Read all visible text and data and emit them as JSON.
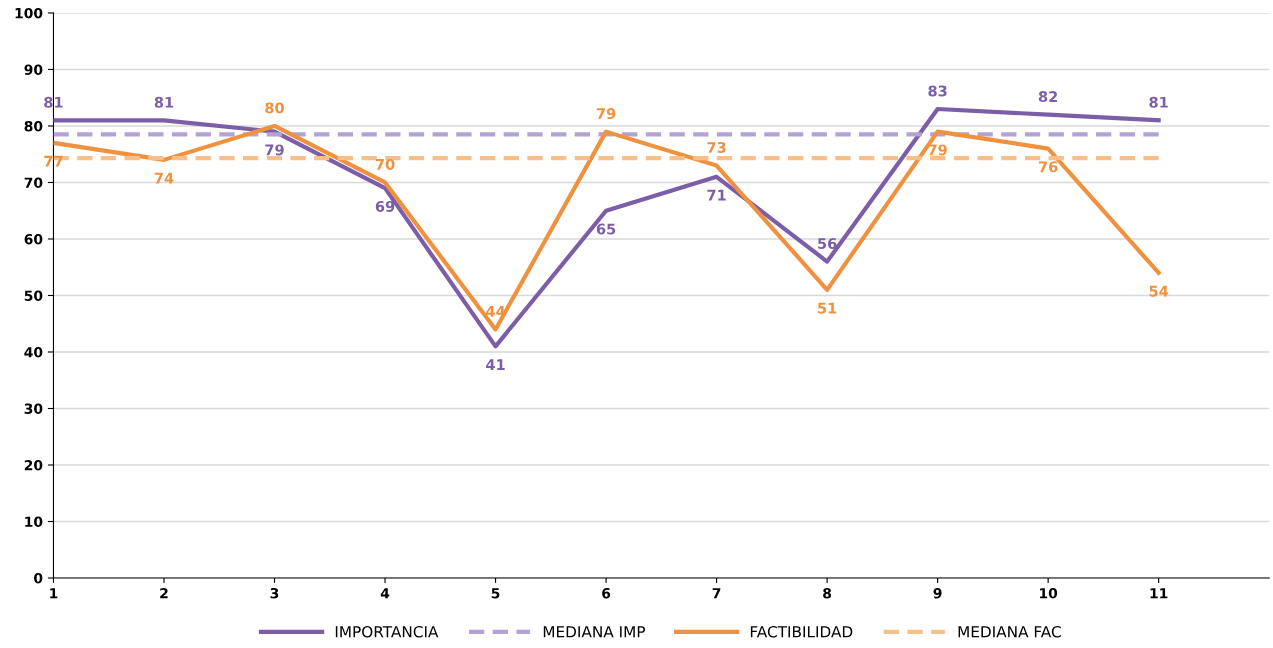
{
  "chart_data": {
    "type": "line",
    "categories": [
      "1",
      "2",
      "3",
      "4",
      "5",
      "6",
      "7",
      "8",
      "9",
      "10",
      "11"
    ],
    "series": [
      {
        "name": "IMPORTANCIA",
        "color": "#7b5ea7",
        "values": [
          81,
          81,
          79,
          69,
          41,
          65,
          71,
          56,
          83,
          82,
          81
        ],
        "value_labels": [
          "81",
          "81",
          "79",
          "69",
          "41",
          "65",
          "71",
          "56",
          "83",
          "82",
          "81"
        ]
      },
      {
        "name": "MEDIANA IMP",
        "color": "#b3a2d3",
        "line_style": "dashed",
        "values": [
          78.5,
          78.5,
          78.5,
          78.5,
          78.5,
          78.5,
          78.5,
          78.5,
          78.5,
          78.5,
          78.5
        ]
      },
      {
        "name": "FACTIBILIDAD",
        "color": "#f0913f",
        "values": [
          77,
          74,
          80,
          70,
          44,
          79,
          73,
          51,
          79,
          76,
          54
        ],
        "value_labels": [
          "77",
          "74",
          "80",
          "70",
          "44",
          "79",
          "73",
          "51",
          "79",
          "76",
          "54"
        ]
      },
      {
        "name": "MEDIANA FAC",
        "color": "#f7c08a",
        "line_style": "dashed",
        "values": [
          74.3,
          74.3,
          74.3,
          74.3,
          74.3,
          74.3,
          74.3,
          74.3,
          74.3,
          74.3,
          74.3
        ]
      }
    ],
    "ylim": [
      0,
      100
    ],
    "yticks": [
      0,
      10,
      20,
      30,
      40,
      50,
      60,
      70,
      80,
      90,
      100
    ],
    "grid": "y",
    "legend": "bottom",
    "marker": "none",
    "line_style": "solid"
  }
}
